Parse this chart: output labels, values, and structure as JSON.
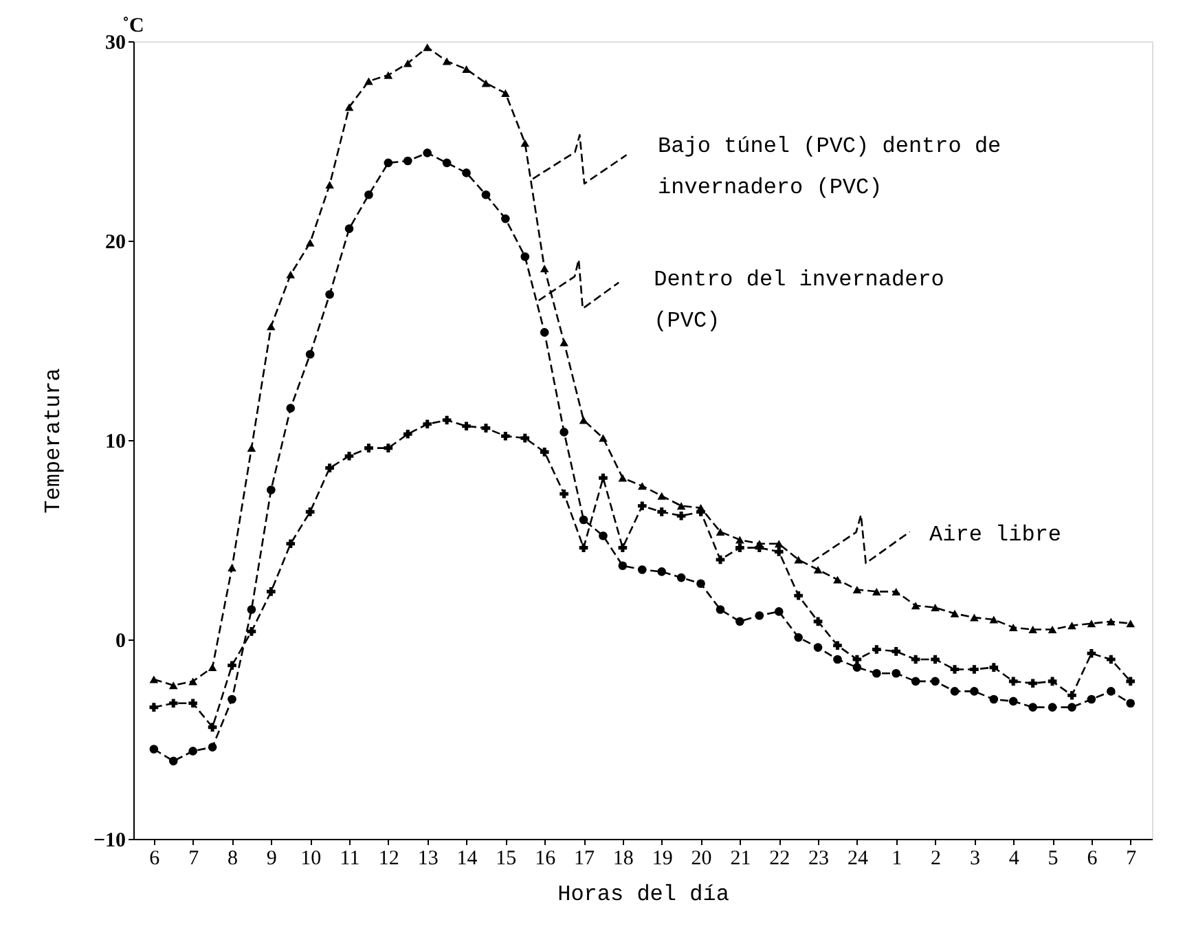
{
  "chart_data": {
    "type": "line",
    "xlabel": "Horas del día",
    "ylabel": "Temperatura",
    "annotations": [
      "˚C"
    ],
    "categories": [
      "6",
      null,
      "7",
      null,
      "8",
      null,
      "9",
      null,
      "10",
      null,
      "11",
      null,
      "12",
      null,
      "13",
      null,
      "14",
      null,
      "15",
      null,
      "16",
      null,
      "17",
      null,
      "18",
      null,
      "19",
      null,
      "20",
      null,
      "21",
      null,
      "22",
      null,
      "23",
      null,
      "24",
      null,
      "1",
      null,
      "2",
      null,
      "3",
      null,
      "4",
      null,
      "5",
      null,
      "6",
      null,
      "7"
    ],
    "series": [
      {
        "name": "Bajo túnel (PVC) dentro de invernadero (PVC)",
        "color": "#000000",
        "marker": "triangle",
        "values": [
          -2.0,
          -2.3,
          -2.1,
          -1.4,
          3.6,
          9.6,
          15.7,
          18.3,
          19.9,
          22.8,
          26.7,
          28.0,
          28.3,
          28.9,
          29.7,
          29.0,
          28.6,
          27.9,
          27.4,
          24.9,
          18.6,
          14.9,
          11.0,
          10.1,
          8.1,
          7.7,
          7.2,
          6.7,
          6.6,
          5.4,
          5.0,
          4.8,
          4.8,
          4.0,
          3.5,
          3.0,
          2.5,
          2.4,
          2.4,
          1.7,
          1.6,
          1.3,
          1.1,
          1.0,
          0.6,
          0.5,
          0.5,
          0.7,
          0.8,
          0.9,
          0.8
        ]
      },
      {
        "name": "Dentro del invernadero (PVC)",
        "color": "#000000",
        "marker": "circle",
        "values": [
          -5.5,
          -6.1,
          -5.6,
          -5.4,
          -3.0,
          1.5,
          7.5,
          11.6,
          14.3,
          17.3,
          20.6,
          22.3,
          23.9,
          24.0,
          24.4,
          23.9,
          23.4,
          22.3,
          21.1,
          19.2,
          15.4,
          10.4,
          6.0,
          5.2,
          3.7,
          3.5,
          3.4,
          3.1,
          2.8,
          1.5,
          0.9,
          1.2,
          1.4,
          0.1,
          -0.4,
          -1.0,
          -1.4,
          -1.7,
          -1.7,
          -2.1,
          -2.1,
          -2.6,
          -2.6,
          -3.0,
          -3.1,
          -3.4,
          -3.4,
          -3.4,
          -3.0,
          -2.6,
          -3.2
        ]
      },
      {
        "name": "Aire libre",
        "color": "#000000",
        "marker": "cross",
        "values": [
          -3.4,
          -3.2,
          -3.2,
          -4.4,
          -1.3,
          0.4,
          2.4,
          4.8,
          6.4,
          8.6,
          9.2,
          9.6,
          9.6,
          10.3,
          10.8,
          11.0,
          10.7,
          10.6,
          10.2,
          10.1,
          9.4,
          7.3,
          4.6,
          8.1,
          4.6,
          6.7,
          6.4,
          6.2,
          6.4,
          4.0,
          4.6,
          4.6,
          4.4,
          2.2,
          0.9,
          -0.3,
          -1.0,
          -0.5,
          -0.6,
          -1.0,
          -1.0,
          -1.5,
          -1.5,
          -1.4,
          -2.1,
          -2.2,
          -2.1,
          -2.8,
          -0.7,
          -1.0,
          -2.1
        ]
      }
    ],
    "ylim": [
      -10,
      30
    ],
    "yticks": [
      -10,
      0,
      10,
      20,
      30
    ],
    "line_style": "dashed",
    "grid": false,
    "legend": "right"
  }
}
